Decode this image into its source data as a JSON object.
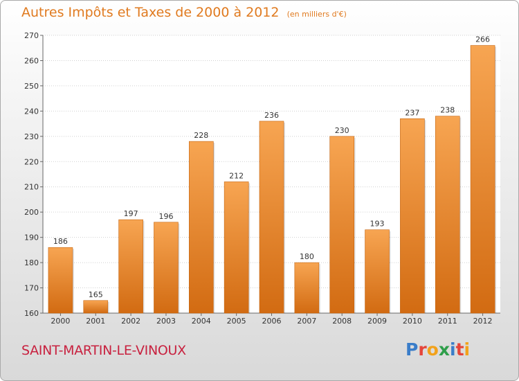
{
  "title": "Autres Impôts et Taxes de 2000 à 2012",
  "unit_note": "(en milliers d'€)",
  "commune": "SAINT-MARTIN-LE-VINOUX",
  "logo": {
    "letters": [
      "P",
      "r",
      "o",
      "x",
      "i",
      "t",
      "i"
    ],
    "colors": [
      "#3a7dc9",
      "#e5453a",
      "#f2a21b",
      "#2e9e4a",
      "#3a7dc9",
      "#e5453a",
      "#f2a21b"
    ]
  },
  "colors": {
    "bar_light": "#f7a552",
    "bar_dark": "#d26b12",
    "title": "#e07a1f",
    "commune": "#c8213f"
  },
  "chart_data": {
    "type": "bar",
    "title": "Autres Impôts et Taxes de 2000 à 2012",
    "subtitle": "(en milliers d'€)",
    "categories": [
      "2000",
      "2001",
      "2002",
      "2003",
      "2004",
      "2005",
      "2006",
      "2007",
      "2008",
      "2009",
      "2010",
      "2011",
      "2012"
    ],
    "values": [
      186,
      165,
      197,
      196,
      228,
      212,
      236,
      180,
      230,
      193,
      237,
      238,
      266
    ],
    "ylim": [
      160,
      270
    ],
    "yticks": [
      160,
      170,
      180,
      190,
      200,
      210,
      220,
      230,
      240,
      250,
      260,
      270
    ],
    "grid": true,
    "xlabel": "",
    "ylabel": ""
  }
}
